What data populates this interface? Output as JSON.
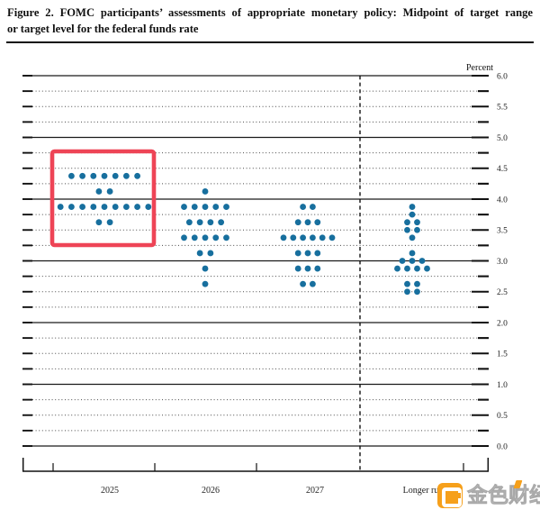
{
  "title": {
    "line1": "Figure 2.  FOMC participants’ assessments of appropriate monetary policy:  Midpoint of target range",
    "line2": "or target level for the federal funds rate"
  },
  "chart_data": {
    "type": "scatter",
    "subtype": "fomc-dot-plot",
    "title": "FOMC participants’ assessments of appropriate monetary policy: Midpoint of target range or target level for the federal funds rate",
    "unit_label": "Percent",
    "ylim": [
      0.0,
      6.0
    ],
    "grid_step": 0.25,
    "solid_gridlines": [
      0.0,
      1.0,
      2.0,
      3.0,
      4.0,
      5.0,
      6.0
    ],
    "y_axis_labels": [
      "6.0",
      "5.5",
      "5.0",
      "4.5",
      "4.0",
      "3.5",
      "3.0",
      "2.5",
      "2.0",
      "1.5",
      "1.0",
      "0.5",
      "0.0"
    ],
    "categories": [
      "2025",
      "2026",
      "2027",
      "Longer run"
    ],
    "series": [
      {
        "category": "2025",
        "dots": [
          {
            "rate": 4.375,
            "count": 7
          },
          {
            "rate": 4.125,
            "count": 2
          },
          {
            "rate": 3.875,
            "count": 9
          },
          {
            "rate": 3.625,
            "count": 2
          }
        ]
      },
      {
        "category": "2026",
        "dots": [
          {
            "rate": 4.125,
            "count": 1
          },
          {
            "rate": 3.875,
            "count": 5
          },
          {
            "rate": 3.625,
            "count": 4
          },
          {
            "rate": 3.375,
            "count": 5
          },
          {
            "rate": 3.125,
            "count": 2
          },
          {
            "rate": 2.875,
            "count": 1
          },
          {
            "rate": 2.625,
            "count": 1
          }
        ]
      },
      {
        "category": "2027",
        "dots": [
          {
            "rate": 3.875,
            "count": 2
          },
          {
            "rate": 3.625,
            "count": 3
          },
          {
            "rate": 3.375,
            "count": 6
          },
          {
            "rate": 3.125,
            "count": 3
          },
          {
            "rate": 2.875,
            "count": 3
          },
          {
            "rate": 2.625,
            "count": 2
          }
        ]
      },
      {
        "category": "Longer run",
        "dots": [
          {
            "rate": 3.875,
            "count": 1
          },
          {
            "rate": 3.75,
            "count": 1
          },
          {
            "rate": 3.625,
            "count": 2
          },
          {
            "rate": 3.5,
            "count": 2
          },
          {
            "rate": 3.375,
            "count": 1
          },
          {
            "rate": 3.125,
            "count": 1
          },
          {
            "rate": 3.0,
            "count": 3
          },
          {
            "rate": 2.875,
            "count": 4
          },
          {
            "rate": 2.625,
            "count": 2
          },
          {
            "rate": 2.5,
            "count": 2
          }
        ]
      }
    ],
    "dot_color": "#176f9e",
    "gridline_color": "#1a1a1a",
    "dotted_line_color": "#4a4a4a",
    "highlight": {
      "category": "2025",
      "color": "#ee4456"
    },
    "legend_position": "none",
    "grid": "on"
  },
  "watermark": {
    "text": "金色财经",
    "brand_color": "#f6a01b"
  }
}
